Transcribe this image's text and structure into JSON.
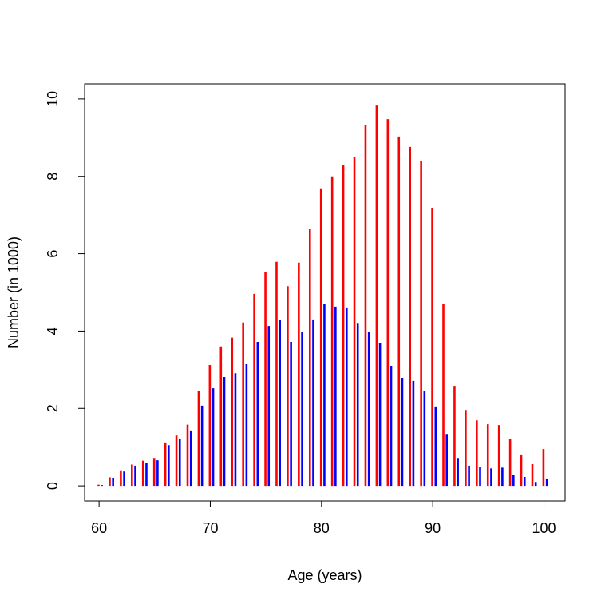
{
  "chart_data": {
    "type": "spikes",
    "xlabel": "Age (years)",
    "ylabel": "Number (in 1000)",
    "x": [
      60,
      61,
      62,
      63,
      64,
      65,
      66,
      67,
      68,
      69,
      70,
      71,
      72,
      73,
      74,
      75,
      76,
      77,
      78,
      79,
      80,
      81,
      82,
      83,
      84,
      85,
      86,
      87,
      88,
      89,
      90,
      91,
      92,
      93,
      94,
      95,
      96,
      97,
      98,
      99,
      100
    ],
    "series": [
      {
        "color": "#ff0000",
        "values": [
          0.03,
          0.22,
          0.4,
          0.55,
          0.65,
          0.72,
          1.12,
          1.3,
          1.58,
          2.45,
          3.12,
          3.6,
          3.83,
          4.22,
          4.96,
          5.52,
          5.79,
          5.16,
          5.77,
          6.65,
          7.69,
          8.0,
          8.29,
          8.51,
          9.32,
          9.83,
          9.48,
          9.03,
          8.76,
          8.39,
          7.19,
          4.69,
          2.58,
          1.96,
          1.69,
          1.59,
          1.57,
          1.22,
          0.81,
          0.56,
          0.95
        ]
      },
      {
        "color": "#0000ff",
        "values": [
          0.02,
          0.21,
          0.37,
          0.52,
          0.6,
          0.66,
          1.05,
          1.22,
          1.43,
          2.07,
          2.52,
          2.81,
          2.91,
          3.16,
          3.72,
          4.13,
          4.28,
          3.72,
          3.97,
          4.3,
          4.71,
          4.63,
          4.61,
          4.21,
          3.97,
          3.7,
          3.1,
          2.79,
          2.71,
          2.44,
          2.05,
          1.34,
          0.72,
          0.52,
          0.48,
          0.45,
          0.47,
          0.29,
          0.23,
          0.1,
          0.19
        ]
      }
    ],
    "xlim": [
      58.7,
      101.9
    ],
    "xticks": [
      60,
      70,
      80,
      90,
      100
    ],
    "ylim": [
      -0.39,
      10.39
    ],
    "yticks": [
      0,
      2,
      4,
      6,
      8,
      10
    ]
  }
}
